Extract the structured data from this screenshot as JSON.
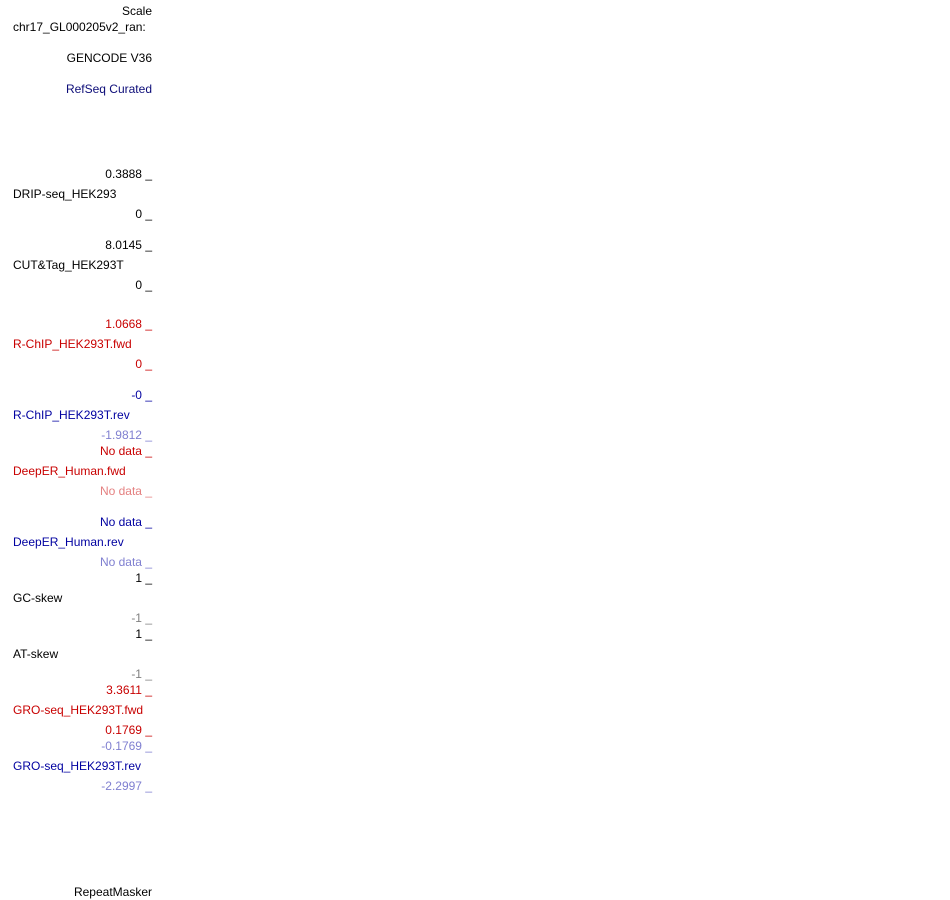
{
  "browser_labels": {
    "scale": "Scale",
    "chrom": "chr17_GL000205v2_ran:",
    "gencode": "GENCODE V36",
    "refseq": "RefSeq Curated",
    "repeatmasker": "RepeatMasker"
  },
  "tracks": [
    {
      "name": "DRIP-seq_HEK293",
      "max": "0.3888 _",
      "min": "0 _"
    },
    {
      "name": "CUT&Tag_HEK293T",
      "max": "8.0145 _",
      "min": "0 _"
    },
    {
      "name": "R-ChIP_HEK293T.fwd",
      "max": "1.0668 _",
      "min": "0 _"
    },
    {
      "name": "R-ChIP_HEK293T.rev",
      "max": "-0 _",
      "min": "-1.9812 _"
    },
    {
      "name": "DeepER_Human.fwd",
      "max": "No data _",
      "min": "No data _"
    },
    {
      "name": "DeepER_Human.rev",
      "max": "No data _",
      "min": "No data _"
    },
    {
      "name": "GC-skew",
      "max": "1 _",
      "min": "-1 _"
    },
    {
      "name": "AT-skew",
      "max": "1 _",
      "min": "-1 _"
    },
    {
      "name": "GRO-seq_HEK293T.fwd",
      "max": "3.3611 _",
      "min": "0.1769 _"
    },
    {
      "name": "GRO-seq_HEK293T.rev",
      "max": "-0.1769 _",
      "min": "-2.2997 _"
    }
  ],
  "colors": {
    "black": "#000000",
    "red": "#c80000",
    "blue": "#0000a0",
    "light_blue": "#7f7fd0",
    "light_red": "#e48080",
    "grey": "#808080",
    "navy": "#0c0c78"
  }
}
